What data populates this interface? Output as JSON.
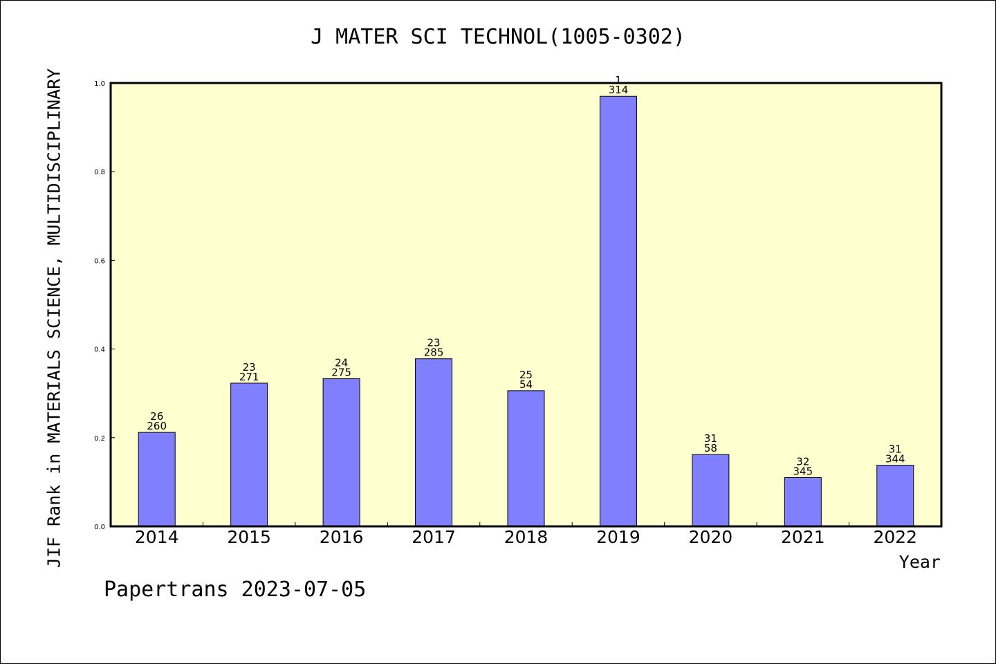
{
  "chart_data": {
    "type": "bar",
    "title": "J MATER SCI TECHNOL(1005-0302)",
    "xlabel": "Year",
    "ylabel": "JIF Rank in MATERIALS SCIENCE, MULTIDISCIPLINARY",
    "ylim": [
      0,
      1.0
    ],
    "yticks": [
      "0.0",
      "0.2",
      "0.4",
      "0.6",
      "0.8",
      "1.0"
    ],
    "categories": [
      "2014",
      "2015",
      "2016",
      "2017",
      "2018",
      "2019",
      "2020",
      "2021",
      "2022"
    ],
    "values": [
      0.212,
      0.323,
      0.333,
      0.378,
      0.306,
      0.97,
      0.162,
      0.11,
      0.138
    ],
    "labels_rank": [
      "26",
      "23",
      "24",
      "23",
      "25",
      "1",
      "31",
      "32",
      "31"
    ],
    "labels_total": [
      "260",
      "271",
      "275",
      "285",
      "54",
      "314",
      "58",
      "345",
      "344"
    ],
    "bar_color": "#8080ff",
    "plot_background": "#ffffd0",
    "grid": false,
    "legend": "none"
  },
  "footer": "Papertrans 2023-07-05"
}
